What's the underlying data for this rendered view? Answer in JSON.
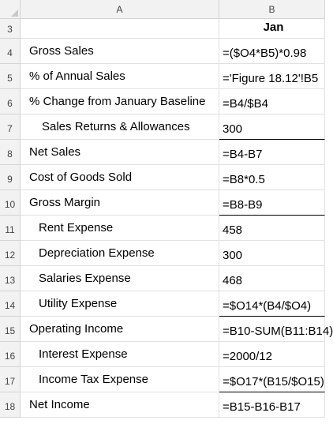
{
  "columns": {
    "a": "A",
    "b": "B"
  },
  "rows": [
    {
      "num": "3",
      "label": "",
      "value": "Jan"
    },
    {
      "num": "4",
      "label": "Gross Sales",
      "value": "=($O4*B5)*0.98"
    },
    {
      "num": "5",
      "label": "% of Annual Sales",
      "value": "='Figure 18.12'!B5"
    },
    {
      "num": "6",
      "label": "% Change from January Baseline",
      "value": "=B4/$B4"
    },
    {
      "num": "7",
      "label": "Sales Returns & Allowances",
      "value": "300"
    },
    {
      "num": "8",
      "label": "Net Sales",
      "value": "=B4-B7"
    },
    {
      "num": "9",
      "label": "Cost of Goods Sold",
      "value": "=B8*0.5"
    },
    {
      "num": "10",
      "label": "Gross Margin",
      "value": "=B8-B9"
    },
    {
      "num": "11",
      "label": "Rent Expense",
      "value": "458"
    },
    {
      "num": "12",
      "label": "Depreciation Expense",
      "value": "300"
    },
    {
      "num": "13",
      "label": "Salaries Expense",
      "value": "468"
    },
    {
      "num": "14",
      "label": "Utility Expense",
      "value": "=$O14*(B4/$O4)"
    },
    {
      "num": "15",
      "label": "Operating Income",
      "value": "=B10-SUM(B11:B14)"
    },
    {
      "num": "16",
      "label": "Interest Expense",
      "value": "=2000/12"
    },
    {
      "num": "17",
      "label": "Income Tax Expense",
      "value": "=$O17*(B15/$O15)"
    },
    {
      "num": "18",
      "label": "Net Income",
      "value": "=B15-B16-B17"
    }
  ]
}
